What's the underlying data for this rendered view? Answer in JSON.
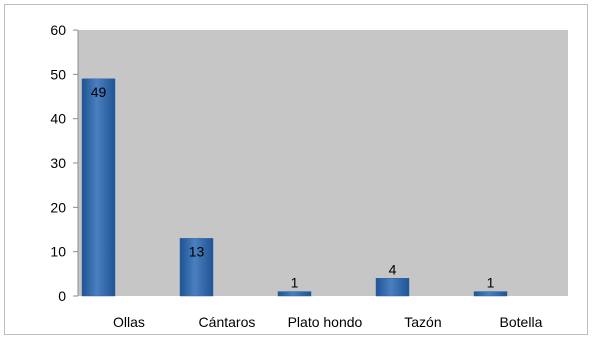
{
  "chart_data": {
    "type": "bar",
    "title": "",
    "xlabel": "",
    "ylabel": "",
    "categories": [
      "Ollas",
      "Cántaros",
      "Plato hondo",
      "Tazón",
      "Botella"
    ],
    "values": [
      49,
      13,
      1,
      4,
      1
    ],
    "data_labels": [
      "49",
      "13",
      "1",
      "4",
      "1"
    ],
    "ylim": [
      0,
      60
    ],
    "y_ticks": [
      0,
      10,
      20,
      30,
      40,
      50,
      60
    ],
    "y_tick_labels": [
      "0",
      "10",
      "20",
      "30",
      "40",
      "50",
      "60"
    ],
    "grid": false,
    "legend": "none",
    "colors": {
      "plot_background": "#c6c6c6",
      "bar_fill": "#2f65a3",
      "bar_highlight": "#4a80bf",
      "axis": "#8c8c8c"
    }
  }
}
